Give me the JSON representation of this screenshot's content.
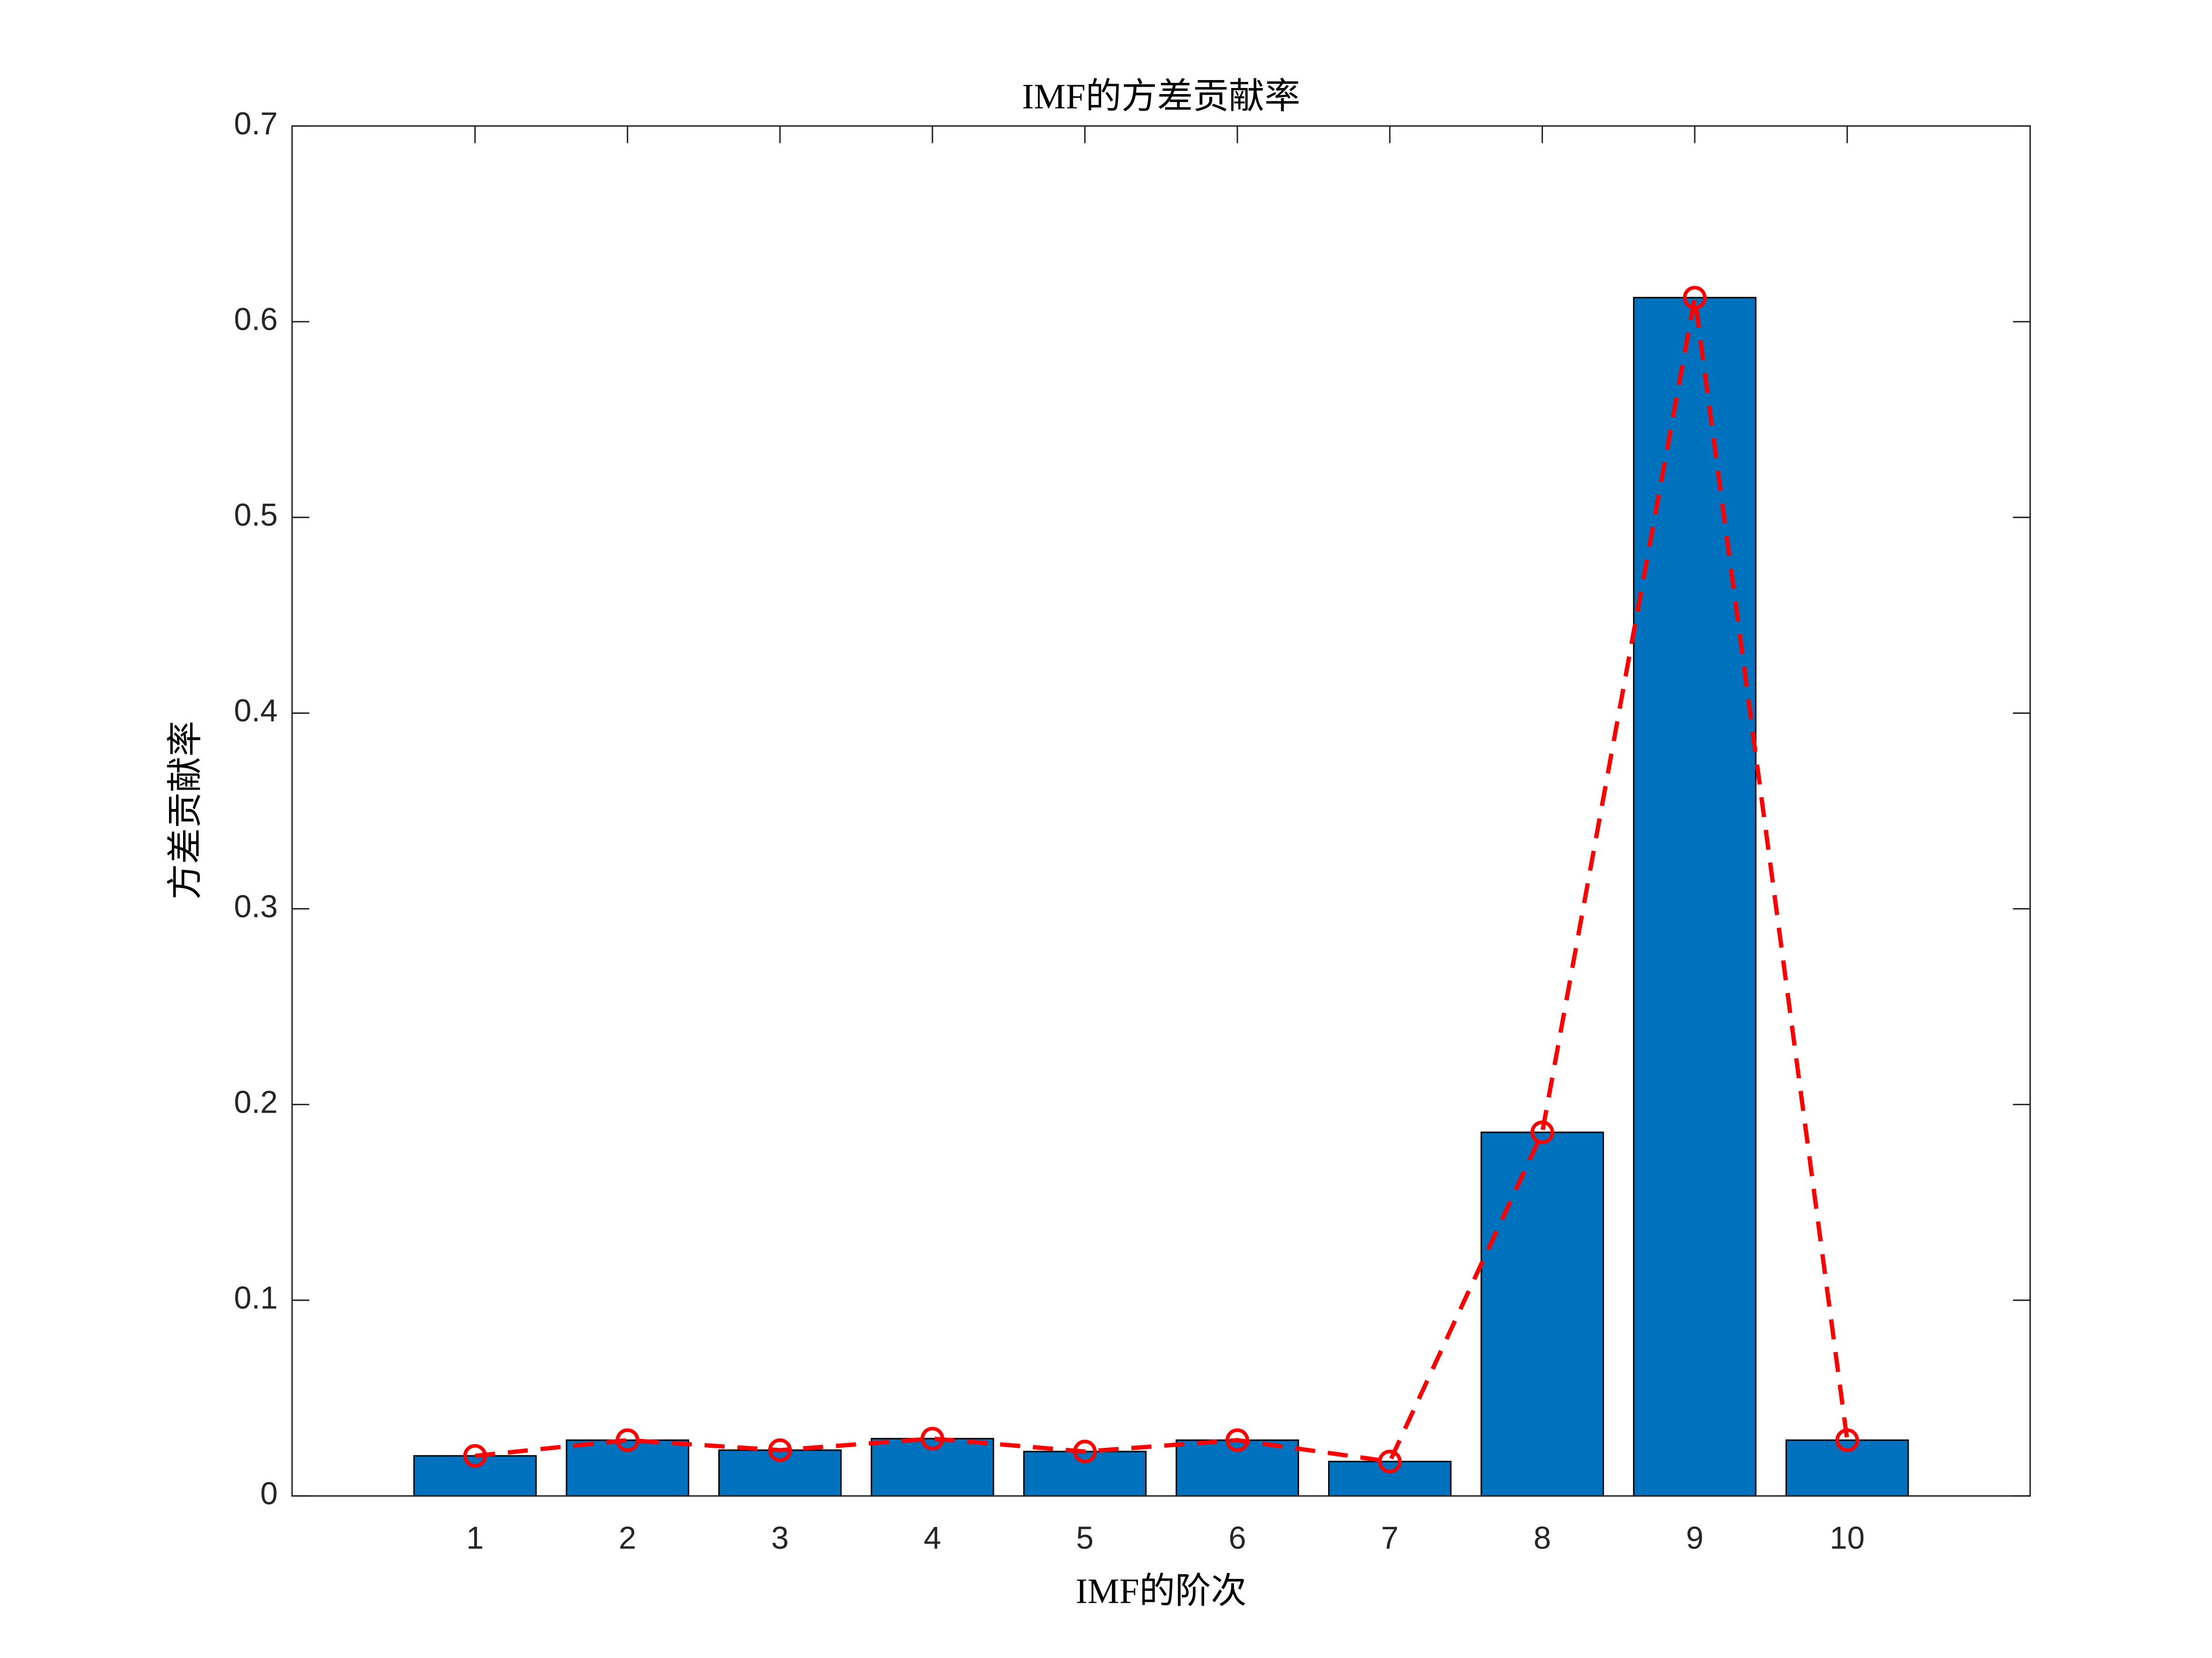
{
  "chart_data": {
    "type": "bar",
    "title": "IMF的方差贡献率",
    "x_label": "IMF的阶次",
    "y_label": "方差贡献率",
    "x": [
      1,
      2,
      3,
      4,
      5,
      6,
      7,
      8,
      9,
      10
    ],
    "values": [
      0.0205,
      0.0285,
      0.0234,
      0.0293,
      0.0227,
      0.0285,
      0.0176,
      0.1858,
      0.6123,
      0.0285
    ],
    "color": "#0072bd",
    "line_overlay": {
      "color": "#ff0000",
      "dashed": true,
      "marker": "circle"
    },
    "xlim": [
      -0.2,
      11.2
    ],
    "xticks": [
      1,
      2,
      3,
      4,
      5,
      6,
      7,
      8,
      9,
      10
    ],
    "ylim": [
      0,
      0.7
    ],
    "yticks": [
      0,
      0.1,
      0.2,
      0.3,
      0.4,
      0.5,
      0.6,
      0.7
    ],
    "grid": false
  }
}
